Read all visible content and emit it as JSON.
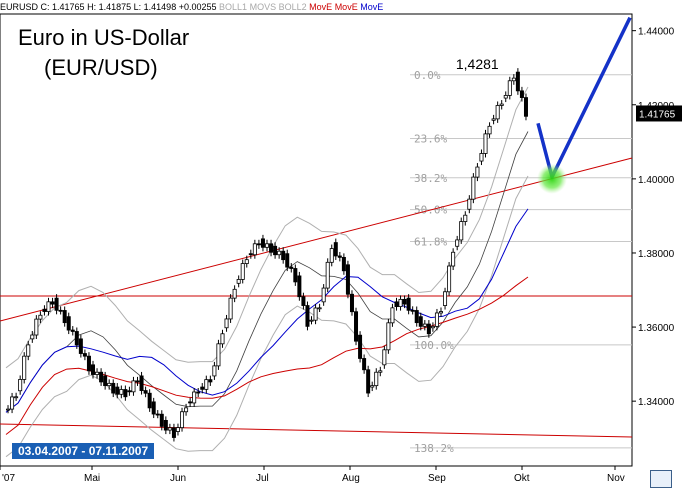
{
  "header": {
    "symbol": "EURUSD",
    "close": "C: 1.41765",
    "high": "H: 1.41875",
    "low": "L: 1.41498",
    "change": "+0.00255",
    "ind1": "BOLL1",
    "ind2": "MOVS",
    "ind3": "BOLL2",
    "ind4": "MovE",
    "ind5": "MovE",
    "ind6": "MovE"
  },
  "title": "Euro in US-Dollar",
  "subtitle": "(EUR/USD)",
  "range_label": "03.04.2007 - 07.11.2007",
  "peak_label": "1,4281",
  "current_price": "1.41765",
  "fib_levels": [
    {
      "label": "0.0%",
      "value": 1.4281
    },
    {
      "label": "23.6%",
      "value": 1.4109
    },
    {
      "label": "38.2%",
      "value": 1.4003
    },
    {
      "label": "50.0%",
      "value": 1.3917
    },
    {
      "label": "61.8%",
      "value": 1.3831
    },
    {
      "label": "100.0%",
      "value": 1.3552
    },
    {
      "label": "138.2%",
      "value": 1.3274
    }
  ],
  "chart_data": {
    "type": "candlestick",
    "x_ticks": [
      "'07",
      "Mai",
      "Jun",
      "Jul",
      "Aug",
      "Sep",
      "Okt",
      "Nov"
    ],
    "y_ticks": [
      "1.44000",
      "1.42000",
      "1.40000",
      "1.38000",
      "1.36000",
      "1.34000"
    ],
    "ylim": [
      1.3225,
      1.4445
    ],
    "price_path": [
      1.337,
      1.342,
      1.356,
      1.364,
      1.367,
      1.362,
      1.356,
      1.349,
      1.346,
      1.343,
      1.342,
      1.346,
      1.339,
      1.334,
      1.331,
      1.339,
      1.343,
      1.346,
      1.359,
      1.371,
      1.379,
      1.383,
      1.381,
      1.379,
      1.373,
      1.361,
      1.366,
      1.382,
      1.376,
      1.357,
      1.343,
      1.349,
      1.366,
      1.367,
      1.362,
      1.359,
      1.365,
      1.381,
      1.391,
      1.404,
      1.415,
      1.421,
      1.428,
      1.4177
    ],
    "forecast_path": [
      [
        1.415,
        1.4005
      ],
      [
        1.4005,
        1.4435
      ]
    ],
    "target_zone": 1.4,
    "colors": {
      "price": "#000000",
      "bollinger": "#b0b0b0",
      "ema_red": "#cc0000",
      "ema_blue": "#0000cc",
      "forecast": "#1432c8",
      "target": "#44dd22"
    }
  }
}
